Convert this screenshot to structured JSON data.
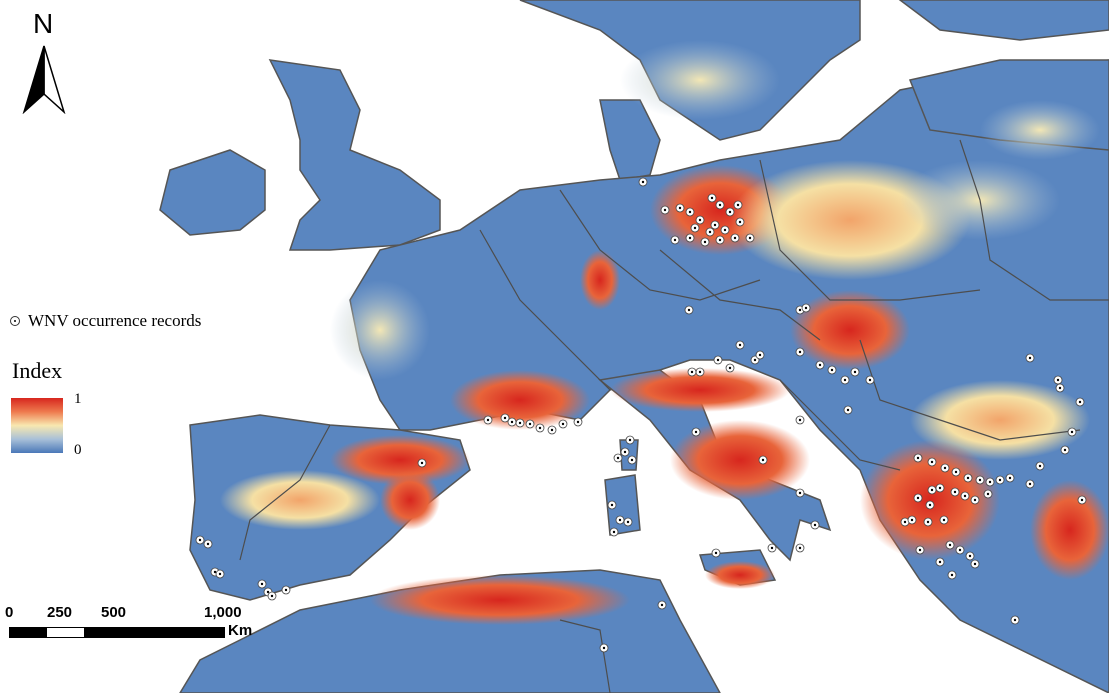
{
  "north_label": "N",
  "legend": {
    "occurrence_label": "WNV occurrence records",
    "index_title": "Index",
    "index_max": "1",
    "index_min": "0",
    "ramp_colors": [
      "#d7261e",
      "#ee7a4e",
      "#f8e8b0",
      "#a8c0d8",
      "#4a78b8"
    ]
  },
  "scale_bar": {
    "ticks": [
      "0",
      "250",
      "500",
      "1,000"
    ],
    "unit": "Km"
  },
  "colors": {
    "sea": "#ffffff",
    "low_risk": "#4a78b8",
    "medium_risk": "#f5e6a8",
    "high_risk": "#d7261e",
    "border": "#555555"
  }
}
